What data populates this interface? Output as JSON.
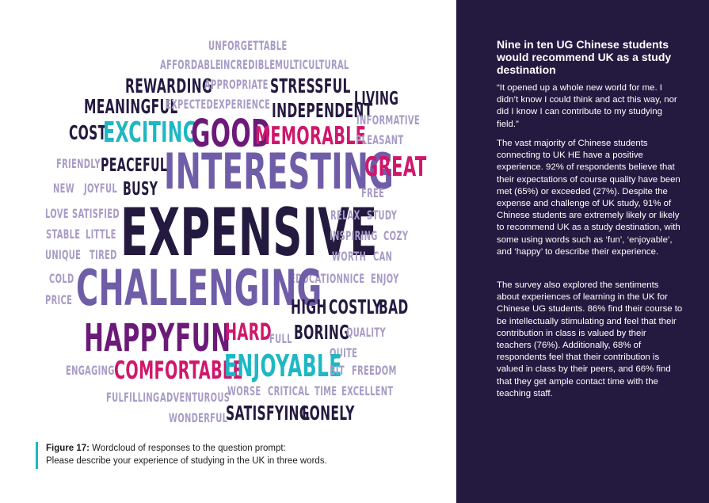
{
  "colors": {
    "navy": "#241a40",
    "purple": "#6f5da8",
    "lavender": "#a89cc7",
    "magenta": "#d0176c",
    "teal": "#1fb7c4",
    "deep_purple": "#6b1a78",
    "sidebar_bg": "#241a40",
    "caption_rule": "#1fb7c4"
  },
  "wordcloud": [
    {
      "text": "UNFORGETTABLE",
      "color": "lavender"
    },
    {
      "text": "AFFORDABLE",
      "color": "lavender"
    },
    {
      "text": "INCREDIBLE",
      "color": "lavender"
    },
    {
      "text": "MULTICULTURAL",
      "color": "lavender"
    },
    {
      "text": "REWARDING",
      "color": "navy"
    },
    {
      "text": "APPROPRIATE",
      "color": "lavender"
    },
    {
      "text": "STRESSFUL",
      "color": "navy"
    },
    {
      "text": "LIVING",
      "color": "navy"
    },
    {
      "text": "MEANINGFUL",
      "color": "navy"
    },
    {
      "text": "EXPECTED",
      "color": "lavender"
    },
    {
      "text": "EXPERIENCE",
      "color": "lavender"
    },
    {
      "text": "INDEPENDENT",
      "color": "navy"
    },
    {
      "text": "INFORMATIVE",
      "color": "lavender"
    },
    {
      "text": "COST",
      "color": "navy"
    },
    {
      "text": "EXCITING",
      "color": "teal"
    },
    {
      "text": "GOOD",
      "color": "deep_purple"
    },
    {
      "text": "MEMORABLE",
      "color": "magenta"
    },
    {
      "text": "PLEASANT",
      "color": "lavender"
    },
    {
      "text": "FRIENDLY",
      "color": "lavender"
    },
    {
      "text": "PEACEFUL",
      "color": "navy"
    },
    {
      "text": "INTERESTING",
      "color": "purple"
    },
    {
      "text": "GREAT",
      "color": "magenta"
    },
    {
      "text": "NEW",
      "color": "lavender"
    },
    {
      "text": "JOYFUL",
      "color": "lavender"
    },
    {
      "text": "BUSY",
      "color": "navy"
    },
    {
      "text": "FREE",
      "color": "lavender"
    },
    {
      "text": "LOVE",
      "color": "lavender"
    },
    {
      "text": "SATISFIED",
      "color": "lavender"
    },
    {
      "text": "EXPENSIVE",
      "color": "navy"
    },
    {
      "text": "RELAX",
      "color": "lavender"
    },
    {
      "text": "STUDY",
      "color": "lavender"
    },
    {
      "text": "STABLE",
      "color": "lavender"
    },
    {
      "text": "LITTLE",
      "color": "lavender"
    },
    {
      "text": "INSPIRING",
      "color": "lavender"
    },
    {
      "text": "COZY",
      "color": "lavender"
    },
    {
      "text": "UNIQUE",
      "color": "lavender"
    },
    {
      "text": "TIRED",
      "color": "lavender"
    },
    {
      "text": "WORTH",
      "color": "lavender"
    },
    {
      "text": "CAN",
      "color": "lavender"
    },
    {
      "text": "COLD",
      "color": "lavender"
    },
    {
      "text": "EDUCATION",
      "color": "lavender"
    },
    {
      "text": "NICE",
      "color": "lavender"
    },
    {
      "text": "ENJOY",
      "color": "lavender"
    },
    {
      "text": "CHALLENGING",
      "color": "purple"
    },
    {
      "text": "PRICE",
      "color": "lavender"
    },
    {
      "text": "HIGH",
      "color": "navy"
    },
    {
      "text": "COSTLY",
      "color": "navy"
    },
    {
      "text": "BAD",
      "color": "navy"
    },
    {
      "text": "HAPPY",
      "color": "deep_purple"
    },
    {
      "text": "FUN",
      "color": "deep_purple"
    },
    {
      "text": "HARD",
      "color": "magenta"
    },
    {
      "text": "FULL",
      "color": "lavender"
    },
    {
      "text": "BORING",
      "color": "navy"
    },
    {
      "text": "QUALITY",
      "color": "lavender"
    },
    {
      "text": "QUITE",
      "color": "lavender"
    },
    {
      "text": "ENGAGING",
      "color": "lavender"
    },
    {
      "text": "COMFORTABLE",
      "color": "magenta"
    },
    {
      "text": "ENJOYABLE",
      "color": "teal"
    },
    {
      "text": "BIT",
      "color": "lavender"
    },
    {
      "text": "FREEDOM",
      "color": "lavender"
    },
    {
      "text": "FULFILLING",
      "color": "lavender"
    },
    {
      "text": "ADVENTUROUS",
      "color": "lavender"
    },
    {
      "text": "WORSE",
      "color": "lavender"
    },
    {
      "text": "CRITICAL",
      "color": "lavender"
    },
    {
      "text": "TIME",
      "color": "lavender"
    },
    {
      "text": "EXCELLENT",
      "color": "lavender"
    },
    {
      "text": "WONDERFUL",
      "color": "lavender"
    },
    {
      "text": "SATISFYING",
      "color": "navy"
    },
    {
      "text": "LONELY",
      "color": "navy"
    }
  ],
  "caption": {
    "label": "Figure 17:",
    "line1": " Wordcloud of responses to the question prompt:",
    "line2": "Please describe your experience of studying in the UK in three words."
  },
  "sidebar": {
    "heading": "Nine in ten UG Chinese students would recommend UK as a study destination",
    "quote": "“It opened up a whole new world for me. I didn’t know I could think and act this way, nor did I know I can contribute to my studying field.”",
    "para1": "The vast majority of Chinese students connecting to UK HE have a positive experience. 92% of respondents believe that their expectations of course quality have been met (65%) or exceeded (27%). Despite the expense and challenge of UK study, 91% of Chinese students are extremely likely or likely to recommend UK as a study destination, with some using words such as ‘fun’, ‘enjoyable’, and ‘happy’ to describe their experience.",
    "para2": "The survey also explored the sentiments about experiences of learning in the UK for Chinese UG students. 86% find their course to be intellectually stimulating and feel that their contribution in class is valued by their teachers (76%). Additionally, 68% of respondents feel that their contribution is valued in class by their peers, and 66% find that they get ample contact time with the teaching staff."
  }
}
